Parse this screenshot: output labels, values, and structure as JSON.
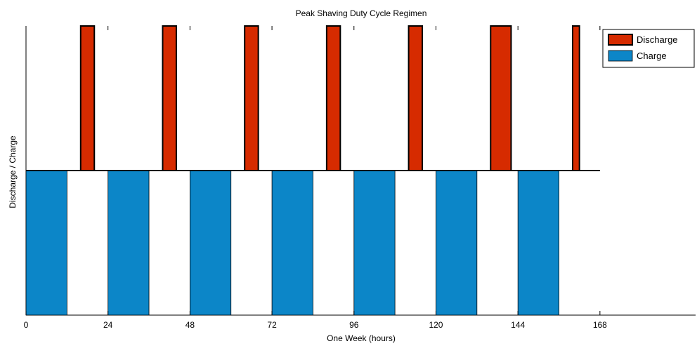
{
  "chart_data": {
    "type": "bar",
    "title": "Peak Shaving Duty Cycle Regimen",
    "xlabel": "One Week (hours)",
    "ylabel": "Discharge / Charge",
    "xlim": [
      0,
      196
    ],
    "ylim": [
      -1,
      1
    ],
    "xticks": [
      0,
      24,
      48,
      72,
      96,
      120,
      144,
      168
    ],
    "grid": false,
    "legend_position": "top-right",
    "colors": {
      "discharge": "#d62b00",
      "charge": "#0c86c8"
    },
    "series": [
      {
        "name": "Discharge",
        "level": 1,
        "intervals": [
          [
            16,
            20
          ],
          [
            40,
            44
          ],
          [
            64,
            68
          ],
          [
            88,
            92
          ],
          [
            112,
            116
          ],
          [
            136,
            142
          ],
          [
            160,
            162
          ]
        ]
      },
      {
        "name": "Charge",
        "level": -1,
        "intervals": [
          [
            0,
            12
          ],
          [
            24,
            36
          ],
          [
            48,
            60
          ],
          [
            72,
            84
          ],
          [
            96,
            108
          ],
          [
            120,
            132
          ],
          [
            144,
            156
          ]
        ]
      }
    ],
    "baseline_range": [
      0,
      168
    ]
  }
}
